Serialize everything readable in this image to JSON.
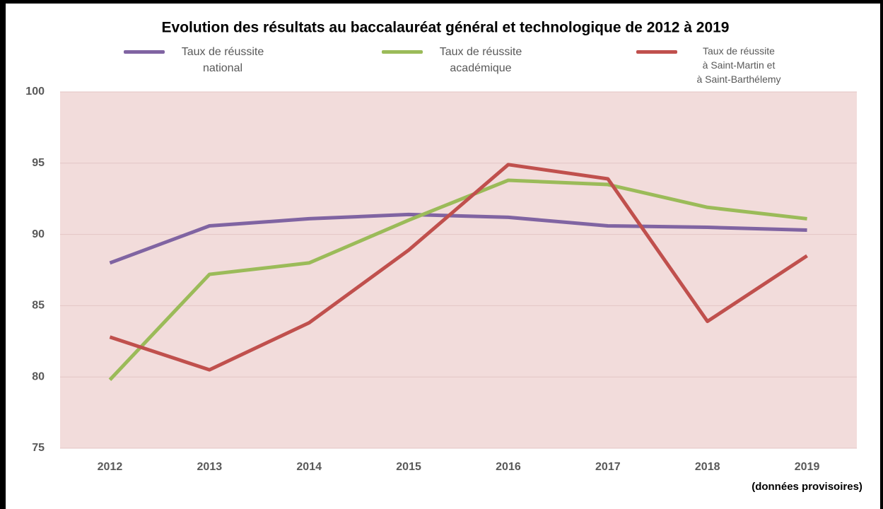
{
  "chart_data": {
    "type": "line",
    "title": "Evolution des résultats au baccalauréat général et technologique de 2012 à 2019",
    "categories": [
      "2012",
      "2013",
      "2014",
      "2015",
      "2016",
      "2017",
      "2018",
      "2019"
    ],
    "annotation": "(données provisoires)",
    "series": [
      {
        "name": "Taux de réussite\nnational",
        "color": "#8064a2",
        "values": [
          88.0,
          90.6,
          91.1,
          91.4,
          91.2,
          90.6,
          90.5,
          90.3
        ]
      },
      {
        "name": "Taux de réussite\nacadémique",
        "color": "#9bbb59",
        "values": [
          79.8,
          87.2,
          88.0,
          91.0,
          93.8,
          93.5,
          91.9,
          91.1
        ]
      },
      {
        "name": "Taux de réussite\nà Saint-Martin et\nà Saint-Barthélemy",
        "color": "#c0504d",
        "values": [
          82.8,
          80.5,
          83.8,
          88.9,
          94.9,
          93.9,
          83.9,
          88.5
        ]
      }
    ],
    "ylim": [
      75,
      100
    ],
    "yticks": [
      75,
      80,
      85,
      90,
      95,
      100
    ],
    "grid": true,
    "plot_background": "#f2dcdb"
  }
}
